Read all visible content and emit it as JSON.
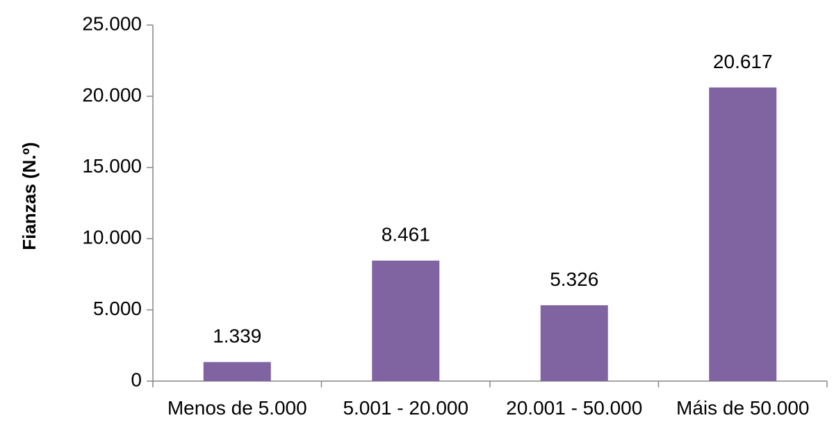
{
  "chart_data": {
    "type": "bar",
    "categories": [
      "Menos de 5.000",
      "5.001 - 20.000",
      "20.001 - 50.000",
      "Máis de 50.000"
    ],
    "values": [
      1339,
      8461,
      5326,
      20617
    ],
    "value_labels": [
      "1.339",
      "8.461",
      "5.326",
      "20.617"
    ],
    "title": "",
    "xlabel": "",
    "ylabel": "Fianzas (N.º)",
    "ylim": [
      0,
      25000
    ],
    "yticks": [
      0,
      5000,
      10000,
      15000,
      20000,
      25000
    ],
    "ytick_labels": [
      "0",
      "5.000",
      "10.000",
      "15.000",
      "20.000",
      "25.000"
    ],
    "bar_color": "#8064A2",
    "grid": false,
    "legend": "none"
  }
}
